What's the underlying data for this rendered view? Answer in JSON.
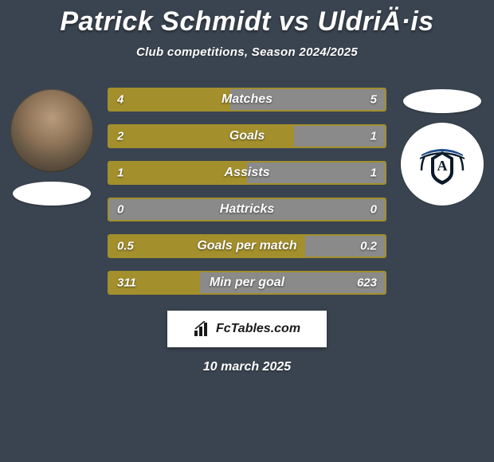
{
  "title": "Patrick Schmidt vs UldriÄ·is",
  "subtitle": "Club competitions, Season 2024/2025",
  "date": "10 march 2025",
  "footer_label": "FcTables.com",
  "colors": {
    "background": "#3a4450",
    "footer_bg": "#ffffff",
    "footer_text": "#1a1a1a",
    "text": "#ffffff"
  },
  "left_side": {
    "avatar_bg": "#8f7458",
    "ellipse_color": "#ffffff"
  },
  "right_side": {
    "club_bg": "#ffffff",
    "club_accent_dark": "#0a1a2a",
    "club_accent_blue": "#1e4b8a",
    "ellipse_color": "#ffffff"
  },
  "stat_rows": [
    {
      "label": "Matches",
      "left_value": "4",
      "right_value": "5",
      "left_pct": 44,
      "right_pct": 56,
      "left_color": "#a38f2c",
      "right_color": "#8a8a8a",
      "border_color": "#a38f2c"
    },
    {
      "label": "Goals",
      "left_value": "2",
      "right_value": "1",
      "left_pct": 67,
      "right_pct": 33,
      "left_color": "#a38f2c",
      "right_color": "#8a8a8a",
      "border_color": "#a38f2c"
    },
    {
      "label": "Assists",
      "left_value": "1",
      "right_value": "1",
      "left_pct": 50,
      "right_pct": 50,
      "left_color": "#a38f2c",
      "right_color": "#8a8a8a",
      "border_color": "#a38f2c"
    },
    {
      "label": "Hattricks",
      "left_value": "0",
      "right_value": "0",
      "left_pct": 0,
      "right_pct": 100,
      "left_color": "#a38f2c",
      "right_color": "#8a8a8a",
      "border_color": "#a38f2c"
    },
    {
      "label": "Goals per match",
      "left_value": "0.5",
      "right_value": "0.2",
      "left_pct": 71,
      "right_pct": 29,
      "left_color": "#a38f2c",
      "right_color": "#8a8a8a",
      "border_color": "#a38f2c"
    },
    {
      "label": "Min per goal",
      "left_value": "311",
      "right_value": "623",
      "left_pct": 33,
      "right_pct": 67,
      "left_color": "#a38f2c",
      "right_color": "#8a8a8a",
      "border_color": "#a38f2c"
    }
  ]
}
